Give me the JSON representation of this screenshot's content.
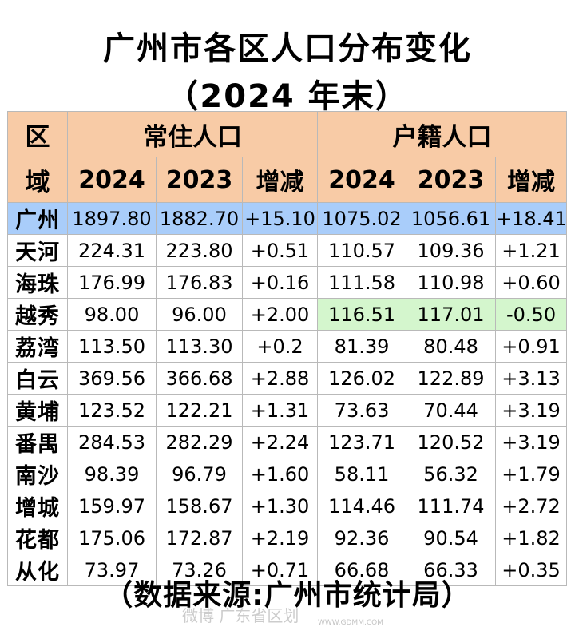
{
  "title_line1": "广州市各区人口分布变化",
  "title_line2": "（2024 年末）",
  "header": {
    "region_top": "区",
    "region_bottom": "域",
    "group_resident": "常住人口",
    "group_registered": "户籍人口",
    "year_2024": "2024",
    "year_2023": "2023",
    "change": "增减"
  },
  "rows": [
    {
      "name": "广州",
      "r2024": "1897.80",
      "r2023": "1882.70",
      "rchg": "+15.10",
      "h2024": "1075.02",
      "h2023": "1056.61",
      "hchg": "+18.41"
    },
    {
      "name": "天河",
      "r2024": "224.31",
      "r2023": "223.80",
      "rchg": "+0.51",
      "h2024": "110.57",
      "h2023": "109.36",
      "hchg": "+1.21"
    },
    {
      "name": "海珠",
      "r2024": "176.99",
      "r2023": "176.83",
      "rchg": "+0.16",
      "h2024": "111.58",
      "h2023": "110.98",
      "hchg": "+0.60"
    },
    {
      "name": "越秀",
      "r2024": "98.00",
      "r2023": "96.00",
      "rchg": "+2.00",
      "h2024": "116.51",
      "h2023": "117.01",
      "hchg": "-0.50"
    },
    {
      "name": "荔湾",
      "r2024": "113.50",
      "r2023": "113.30",
      "rchg": "+0.2",
      "h2024": "81.39",
      "h2023": "80.48",
      "hchg": "+0.91"
    },
    {
      "name": "白云",
      "r2024": "369.56",
      "r2023": "366.68",
      "rchg": "+2.88",
      "h2024": "126.02",
      "h2023": "122.89",
      "hchg": "+3.13"
    },
    {
      "name": "黄埔",
      "r2024": "123.52",
      "r2023": "122.21",
      "rchg": "+1.31",
      "h2024": "73.63",
      "h2023": "70.44",
      "hchg": "+3.19"
    },
    {
      "name": "番禺",
      "r2024": "284.53",
      "r2023": "282.29",
      "rchg": "+2.24",
      "h2024": "123.71",
      "h2023": "120.52",
      "hchg": "+3.19"
    },
    {
      "name": "南沙",
      "r2024": "98.39",
      "r2023": "96.79",
      "rchg": "+1.60",
      "h2024": "58.11",
      "h2023": "56.32",
      "hchg": "+1.79"
    },
    {
      "name": "增城",
      "r2024": "159.97",
      "r2023": "158.67",
      "rchg": "+1.30",
      "h2024": "114.46",
      "h2023": "111.74",
      "hchg": "+2.72"
    },
    {
      "name": "花都",
      "r2024": "175.06",
      "r2023": "172.87",
      "rchg": "+2.19",
      "h2024": "92.36",
      "h2023": "90.54",
      "hchg": "+1.82"
    },
    {
      "name": "从化",
      "r2024": "73.97",
      "r2023": "73.26",
      "rchg": "+0.71",
      "h2024": "66.68",
      "h2023": "66.33",
      "hchg": "+0.35"
    }
  ],
  "source": "（数据来源:广州市统计局）",
  "watermark": "微博 广东省区划",
  "watermark_sub": "WWW.GDMM.COM",
  "colors": {
    "header_bg": "#f8cba6",
    "total_row_bg": "#a9cdfa",
    "highlight_green": "#d4f6cd"
  }
}
